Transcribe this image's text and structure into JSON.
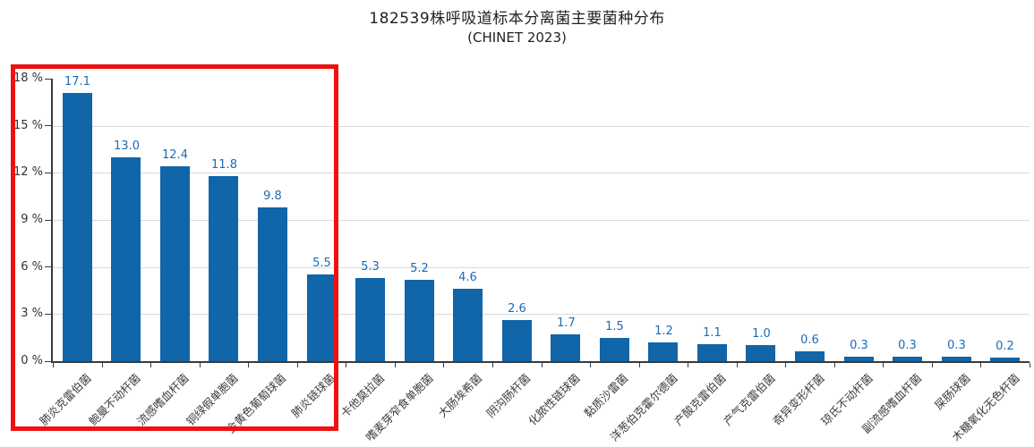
{
  "header": {
    "title": "182539株呼吸道标本分离菌主要菌种分布",
    "subtitle": "(CHINET 2023)"
  },
  "chart_data": {
    "type": "bar",
    "title": "182539株呼吸道标本分离菌主要菌种分布",
    "subtitle": "(CHINET 2023)",
    "categories": [
      "肺炎克雷伯菌",
      "鲍曼不动杆菌",
      "流感嗜血杆菌",
      "铜绿假单胞菌",
      "金黄色葡萄球菌",
      "肺炎链球菌",
      "卡他莫拉菌",
      "嗜麦芽窄食单胞菌",
      "大肠埃希菌",
      "阴沟肠杆菌",
      "化脓性链球菌",
      "黏质沙雷菌",
      "洋葱伯克霍尔德菌",
      "产酸克雷伯菌",
      "产气克雷伯菌",
      "奇异变形杆菌",
      "琼氏不动杆菌",
      "副流感嗜血杆菌",
      "屎肠球菌",
      "木糖氧化无色杆菌"
    ],
    "values": [
      17.1,
      13.0,
      12.4,
      11.8,
      9.8,
      5.5,
      5.3,
      5.2,
      4.6,
      2.6,
      1.7,
      1.5,
      1.2,
      1.1,
      1.0,
      0.6,
      0.3,
      0.3,
      0.3,
      0.2
    ],
    "xlabel": "",
    "ylabel": "",
    "ylim": [
      0,
      18
    ],
    "y_tick_values": [
      0,
      3,
      6,
      9,
      12,
      15,
      18
    ],
    "y_tick_suffix": " %",
    "gridline_values": [
      3,
      6,
      9,
      12,
      15
    ],
    "grid": true,
    "legend": "none",
    "bar_color": "#1165a9",
    "value_label_color": "#1a6cb5",
    "annotation": {
      "shape": "highlight-rectangle",
      "color": "#ee1111",
      "covers": "y-axis and first 6 bars (肺炎克雷伯菌 through 肺炎链球菌)"
    }
  }
}
